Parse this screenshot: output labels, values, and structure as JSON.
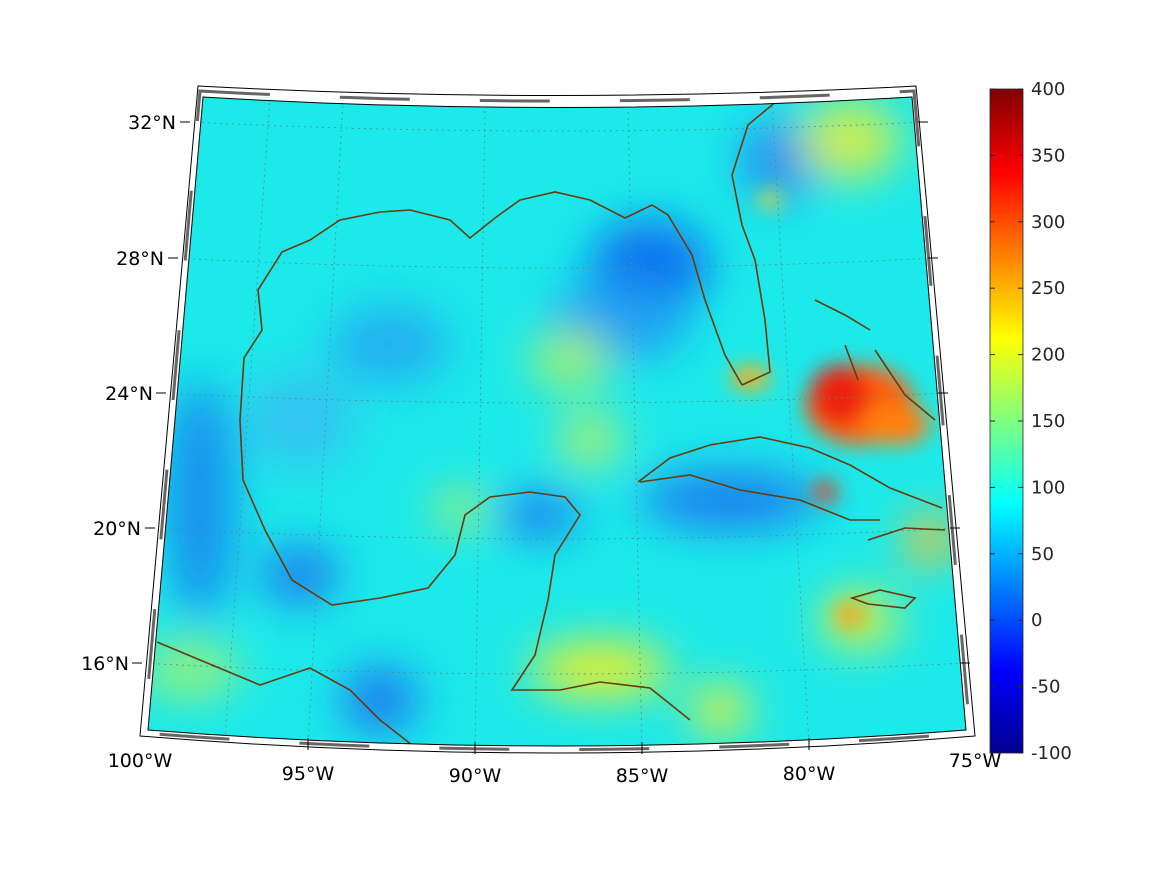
{
  "chart_data": {
    "type": "heatmap",
    "title": "",
    "projection": "conic",
    "lat_ticks": [
      "32°N",
      "28°N",
      "24°N",
      "20°N",
      "16°N"
    ],
    "lon_ticks": [
      "100°W",
      "95°W",
      "90°W",
      "85°W",
      "80°W",
      "75°W"
    ],
    "lat_range": [
      14,
      33
    ],
    "lon_range": [
      -100,
      -75
    ],
    "colorbar": {
      "colormap": "jet",
      "range": [
        -100,
        400
      ],
      "ticks": [
        "400",
        "350",
        "300",
        "250",
        "200",
        "150",
        "100",
        "50",
        "0",
        "-50",
        "-100"
      ]
    },
    "field_notes": {
      "background_value": 110,
      "max_region": "Bahamas / Great Bahama Bank, ~300-330",
      "min_region": "NE Gulf of Mexico, ~20-40"
    },
    "colors": {
      "coastline": "#6b3a0c",
      "jet_low": "#00008f",
      "jet_high": "#800000"
    }
  }
}
